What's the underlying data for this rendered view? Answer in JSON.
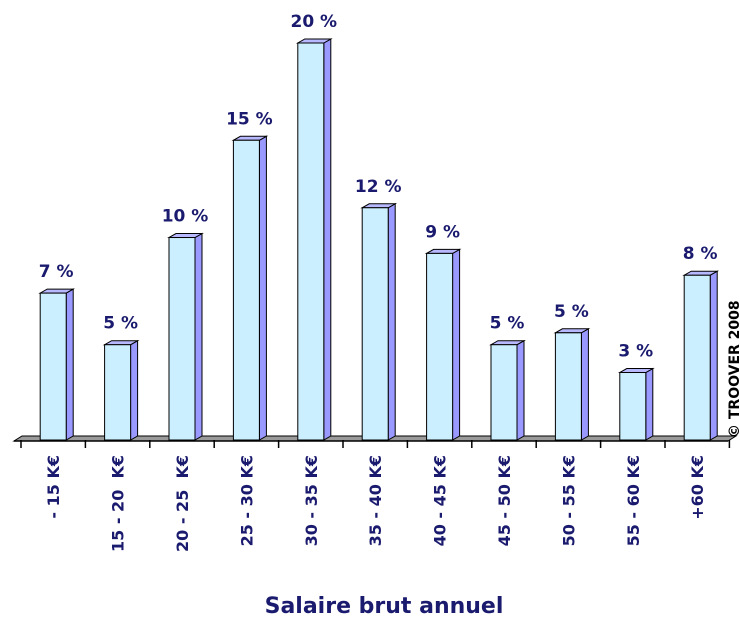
{
  "chart_data": {
    "type": "bar",
    "x_label": "Salaire brut annuel",
    "annotation": "© TROOVER 2008",
    "categories": [
      "- 15 K€",
      "15 - 20  K€",
      "20 - 25  K€",
      "25 - 30 K€",
      "30 - 35 K€",
      "35 - 40 K€",
      "40 - 45 K€",
      "45 - 50 K€",
      "50 - 55 K€",
      "55 - 60 K€",
      "+60 K€"
    ],
    "values": [
      7.4,
      4.8,
      10.2,
      15.1,
      20,
      11.7,
      9.4,
      4.8,
      5.4,
      3.4,
      8.3
    ],
    "value_labels": [
      "7 %",
      "5 %",
      "10 %",
      "15 %",
      "20 %",
      "12 %",
      "9 %",
      "5 %",
      "5 %",
      "3 %",
      "8 %"
    ],
    "color": "#ccefff"
  }
}
